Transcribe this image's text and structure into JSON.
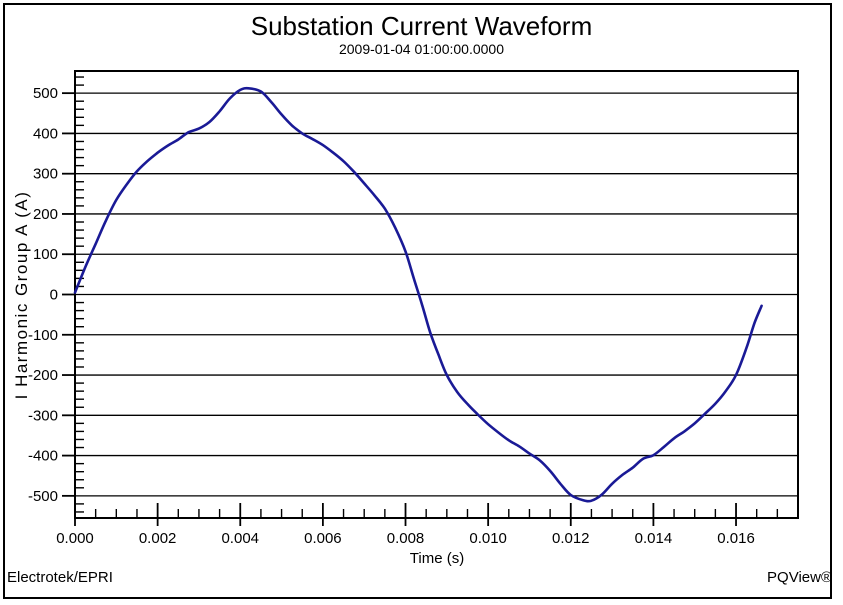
{
  "header": {
    "title": "Substation Current Waveform",
    "subtitle": "2009-01-04 01:00:00.0000"
  },
  "footer": {
    "left": "Electrotek/EPRI",
    "right": "PQView®"
  },
  "chart_data": {
    "type": "line",
    "title": "Substation Current Waveform",
    "subtitle": "2009-01-04 01:00:00.0000",
    "xlabel": "Time (s)",
    "ylabel": "I Harmonic Group A  (A)",
    "xlim": [
      0,
      0.0175
    ],
    "ylim": [
      -555,
      555
    ],
    "x_major_ticks": [
      0,
      0.002,
      0.004,
      0.006,
      0.008,
      0.01,
      0.012,
      0.014,
      0.016
    ],
    "x_tick_decimals": 3,
    "x_minor_step": 0.0005,
    "y_major_ticks": [
      500,
      400,
      300,
      200,
      100,
      0,
      -100,
      -200,
      -300,
      -400,
      -500
    ],
    "y_minor_step": 20,
    "grid": "horizontal-gridlines-only",
    "legend": "none",
    "line_color": "#1a1a96",
    "axis_color": "#000000",
    "series": [
      {
        "name": "I Harmonic Group A",
        "units": "A",
        "points": [
          [
            0.0,
            5
          ],
          [
            0.00025,
            68
          ],
          [
            0.0005,
            126
          ],
          [
            0.00075,
            184
          ],
          [
            0.001,
            235
          ],
          [
            0.00125,
            273
          ],
          [
            0.0015,
            306
          ],
          [
            0.00175,
            331
          ],
          [
            0.002,
            352
          ],
          [
            0.00225,
            370
          ],
          [
            0.0025,
            385
          ],
          [
            0.00275,
            403
          ],
          [
            0.003,
            412
          ],
          [
            0.00325,
            428
          ],
          [
            0.0035,
            455
          ],
          [
            0.00375,
            487
          ],
          [
            0.004,
            508
          ],
          [
            0.0042,
            512
          ],
          [
            0.0045,
            504
          ],
          [
            0.00475,
            478
          ],
          [
            0.005,
            447
          ],
          [
            0.00525,
            420
          ],
          [
            0.0055,
            400
          ],
          [
            0.00575,
            386
          ],
          [
            0.006,
            371
          ],
          [
            0.00625,
            352
          ],
          [
            0.0065,
            331
          ],
          [
            0.00675,
            305
          ],
          [
            0.007,
            276
          ],
          [
            0.00725,
            246
          ],
          [
            0.0075,
            213
          ],
          [
            0.00775,
            166
          ],
          [
            0.008,
            107
          ],
          [
            0.0082,
            40
          ],
          [
            0.0084,
            -25
          ],
          [
            0.0086,
            -95
          ],
          [
            0.0088,
            -150
          ],
          [
            0.009,
            -200
          ],
          [
            0.00925,
            -242
          ],
          [
            0.0095,
            -272
          ],
          [
            0.00975,
            -298
          ],
          [
            0.01,
            -322
          ],
          [
            0.01025,
            -343
          ],
          [
            0.0105,
            -362
          ],
          [
            0.01075,
            -377
          ],
          [
            0.011,
            -395
          ],
          [
            0.01125,
            -412
          ],
          [
            0.0115,
            -438
          ],
          [
            0.01175,
            -470
          ],
          [
            0.012,
            -498
          ],
          [
            0.0123,
            -511
          ],
          [
            0.0125,
            -512
          ],
          [
            0.01275,
            -497
          ],
          [
            0.013,
            -470
          ],
          [
            0.01325,
            -448
          ],
          [
            0.0135,
            -430
          ],
          [
            0.01375,
            -408
          ],
          [
            0.014,
            -399
          ],
          [
            0.01425,
            -379
          ],
          [
            0.0145,
            -357
          ],
          [
            0.01475,
            -340
          ],
          [
            0.015,
            -320
          ],
          [
            0.01525,
            -296
          ],
          [
            0.0155,
            -271
          ],
          [
            0.01575,
            -240
          ],
          [
            0.016,
            -200
          ],
          [
            0.01625,
            -133
          ],
          [
            0.01645,
            -70
          ],
          [
            0.01662,
            -28
          ]
        ]
      }
    ]
  }
}
